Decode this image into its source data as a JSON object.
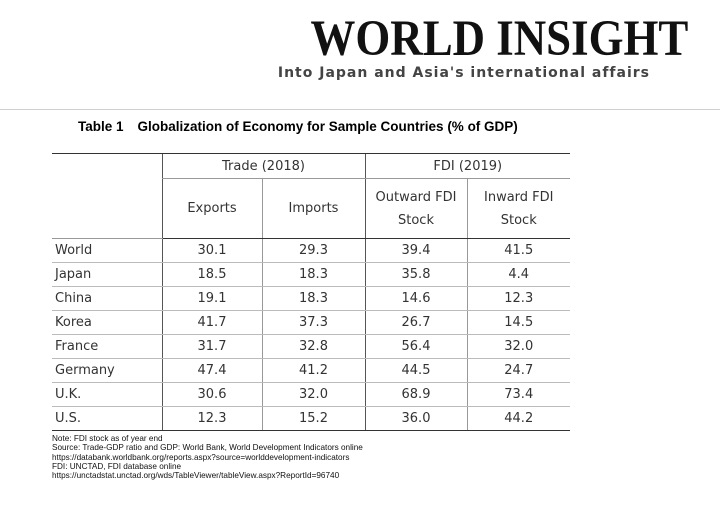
{
  "masthead": {
    "logo_text": "WORLD INSIGHT",
    "tagline": "Into Japan and Asia's international affairs"
  },
  "table": {
    "number": "Table 1",
    "title": "Globalization of Economy for Sample Countries (% of GDP)",
    "groups": [
      "Trade (2018)",
      "FDI (2019)"
    ],
    "columns": [
      "Exports",
      "Imports",
      "Outward FDI\nStock",
      "Inward FDI\nStock"
    ],
    "rows": [
      {
        "country": "World",
        "values": [
          "30.1",
          "29.3",
          "39.4",
          "41.5"
        ]
      },
      {
        "country": "Japan",
        "values": [
          "18.5",
          "18.3",
          "35.8",
          "4.4"
        ]
      },
      {
        "country": "China",
        "values": [
          "19.1",
          "18.3",
          "14.6",
          "12.3"
        ]
      },
      {
        "country": "Korea",
        "values": [
          "41.7",
          "37.3",
          "26.7",
          "14.5"
        ]
      },
      {
        "country": "France",
        "values": [
          "31.7",
          "32.8",
          "56.4",
          "32.0"
        ]
      },
      {
        "country": "Germany",
        "values": [
          "47.4",
          "41.2",
          "44.5",
          "24.7"
        ]
      },
      {
        "country": "U.K.",
        "values": [
          "30.6",
          "32.0",
          "68.9",
          "73.4"
        ]
      },
      {
        "country": "U.S.",
        "values": [
          "12.3",
          "15.2",
          "36.0",
          "44.2"
        ]
      }
    ]
  },
  "notes": [
    "Note: FDI stock as of year end",
    "Source: Trade-GDP ratio and GDP: World Bank, World Development Indicators online",
    "https://databank.worldbank.org/reports.aspx?source=worlddevelopment-indicators",
    "FDI: UNCTAD, FDI database online",
    "https://unctadstat.unctad.org/wds/TableViewer/tableView.aspx?ReportId=96740"
  ]
}
